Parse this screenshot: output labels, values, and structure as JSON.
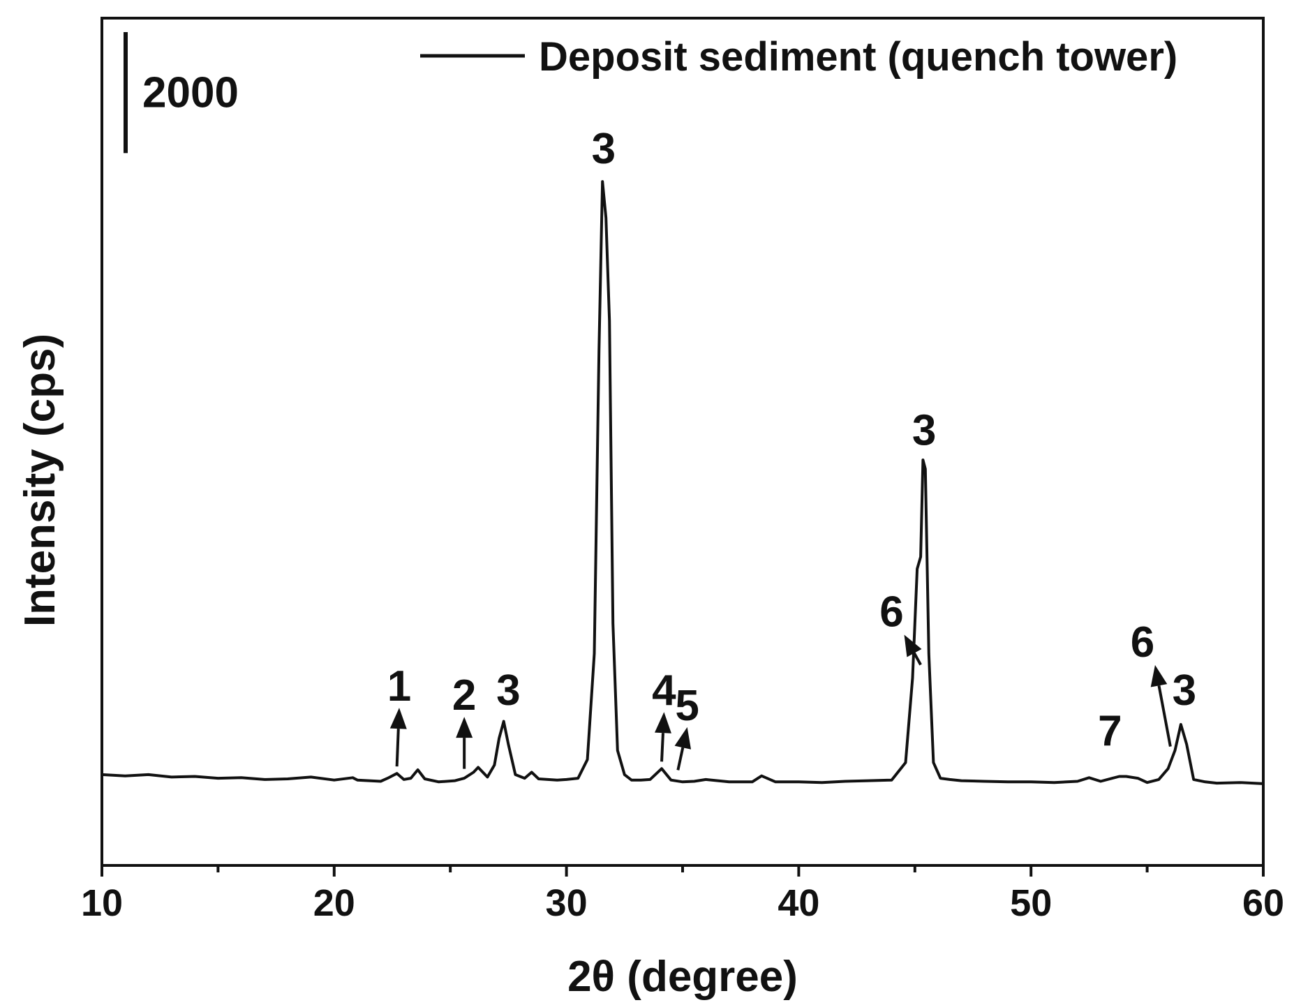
{
  "chart_data": {
    "type": "line",
    "title": "",
    "xlabel": "2θ (degree)",
    "ylabel": "Intensity (cps)",
    "xlim": [
      10,
      60
    ],
    "xticks": [
      10,
      20,
      30,
      40,
      50,
      60
    ],
    "xtick_labels": [
      "10",
      "20",
      "30",
      "40",
      "50",
      "60"
    ],
    "ylim": [
      -1500,
      12500
    ],
    "grid": false,
    "legend_position": "top-right",
    "scale_bar": {
      "value": 2000,
      "label": "2000"
    },
    "series": [
      {
        "name": "Deposit sediment (quench tower)",
        "color": "#111111",
        "x": [
          10,
          11,
          12,
          13,
          14,
          15,
          16,
          17,
          18,
          19,
          20,
          20.8,
          21,
          22,
          22.3,
          22.7,
          23,
          23.3,
          23.6,
          23.9,
          24.5,
          25.2,
          25.6,
          26.0,
          26.2,
          26.4,
          26.6,
          26.9,
          27.1,
          27.3,
          27.5,
          27.8,
          28.2,
          28.5,
          28.8,
          29.2,
          29.6,
          30,
          30.5,
          30.9,
          31.2,
          31.4,
          31.55,
          31.7,
          31.85,
          32.0,
          32.2,
          32.5,
          32.8,
          33.2,
          33.6,
          34.1,
          34.5,
          35,
          35.5,
          36,
          37,
          38,
          38.4,
          39,
          40,
          41,
          42,
          43,
          44,
          44.6,
          44.9,
          45.1,
          45.25,
          45.35,
          45.45,
          45.6,
          45.8,
          46.1,
          46.5,
          47,
          48,
          49,
          50,
          51,
          52,
          52.5,
          53,
          53.5,
          53.8,
          54.1,
          54.6,
          55,
          55.5,
          55.9,
          56.2,
          56.45,
          56.7,
          57.0,
          57.5,
          58,
          59,
          60
        ],
        "y": [
          0,
          -20,
          0,
          -40,
          -30,
          -60,
          -50,
          -80,
          -70,
          -40,
          -90,
          -50,
          -90,
          -110,
          -60,
          20,
          -80,
          -60,
          80,
          -70,
          -120,
          -100,
          -60,
          40,
          120,
          40,
          -40,
          160,
          600,
          880,
          500,
          0,
          -60,
          40,
          -70,
          -80,
          -90,
          -80,
          -60,
          250,
          2000,
          7000,
          9800,
          9200,
          7500,
          2500,
          400,
          0,
          -90,
          -90,
          -80,
          100,
          -90,
          -120,
          -110,
          -80,
          -120,
          -120,
          -20,
          -120,
          -120,
          -130,
          -110,
          -100,
          -90,
          200,
          1600,
          3400,
          3600,
          5200,
          5050,
          2000,
          200,
          -60,
          -80,
          -100,
          -110,
          -120,
          -120,
          -130,
          -110,
          -50,
          -110,
          -60,
          -30,
          -30,
          -60,
          -130,
          -80,
          100,
          400,
          830,
          500,
          -80,
          -120,
          -140,
          -130,
          -150
        ]
      }
    ],
    "annotations": [
      {
        "label": "1",
        "x": 22.7,
        "y": 20,
        "arrow": true,
        "text_x": 22.8,
        "text_y": 1220
      },
      {
        "label": "2",
        "x": 25.6,
        "y": -20,
        "arrow": true,
        "text_x": 25.6,
        "text_y": 1070
      },
      {
        "label": "3",
        "x": 27.3,
        "y": 880,
        "arrow": false,
        "text_x": 27.5,
        "text_y": 1150
      },
      {
        "label": "3",
        "x": 31.6,
        "y": 9800,
        "arrow": false,
        "text_x": 31.6,
        "text_y": 10100
      },
      {
        "label": "4",
        "x": 34.1,
        "y": 100,
        "arrow": true,
        "text_x": 34.2,
        "text_y": 1150
      },
      {
        "label": "5",
        "x": 34.8,
        "y": -40,
        "arrow": true,
        "text_x": 35.2,
        "text_y": 900
      },
      {
        "label": "3",
        "x": 45.4,
        "y": 5200,
        "arrow": false,
        "text_x": 45.4,
        "text_y": 5450
      },
      {
        "label": "6",
        "x": 45.25,
        "y": 1700,
        "arrow": true,
        "text_x": 44.0,
        "text_y": 2450
      },
      {
        "label": "7",
        "x": 53.4,
        "y": -40,
        "arrow": false,
        "text_x": 53.4,
        "text_y": 480
      },
      {
        "label": "6",
        "x": 56.0,
        "y": 350,
        "arrow": true,
        "text_x": 54.8,
        "text_y": 1950
      },
      {
        "label": "3",
        "x": 56.45,
        "y": 830,
        "arrow": false,
        "text_x": 56.6,
        "text_y": 1150
      }
    ]
  }
}
